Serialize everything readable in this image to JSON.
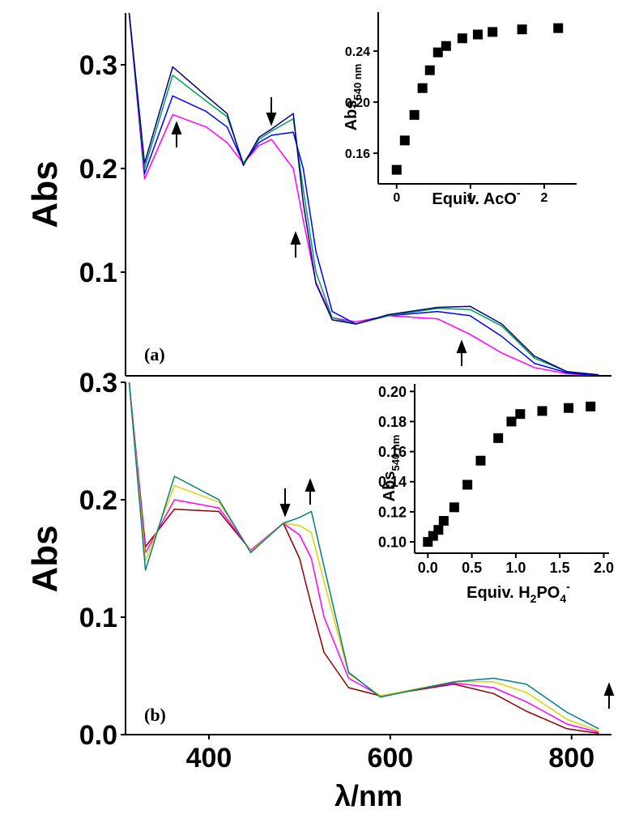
{
  "chart_data": [
    {
      "type": "line",
      "ylabel": "Abs",
      "annotation": "(a)",
      "xlim": [
        308,
        844
      ],
      "ylim": [
        0,
        0.35
      ],
      "yticks": [
        0.1,
        0.2,
        0.3
      ],
      "x": [
        312,
        329,
        360,
        397,
        420,
        438,
        455,
        469,
        493,
        504,
        518,
        536,
        562,
        598,
        652,
        688,
        723,
        759,
        795,
        830
      ],
      "series": [
        {
          "color": "#ff00ff",
          "values": [
            0.35,
            0.19,
            0.252,
            0.24,
            0.225,
            0.205,
            0.222,
            0.228,
            0.2,
            0.15,
            0.09,
            0.056,
            0.052,
            0.058,
            0.055,
            0.04,
            0.022,
            0.008,
            0.002,
            0
          ]
        },
        {
          "color": "#0000ff",
          "values": [
            0.35,
            0.195,
            0.27,
            0.255,
            0.24,
            0.205,
            0.225,
            0.232,
            0.235,
            0.2,
            0.12,
            0.062,
            0.05,
            0.058,
            0.062,
            0.058,
            0.038,
            0.012,
            0.003,
            0
          ]
        },
        {
          "color": "#00a050",
          "values": [
            0.35,
            0.2,
            0.29,
            0.265,
            0.25,
            0.205,
            0.228,
            0.236,
            0.248,
            0.18,
            0.1,
            0.056,
            0.05,
            0.058,
            0.065,
            0.064,
            0.048,
            0.017,
            0.004,
            0.001
          ]
        },
        {
          "color": "#000080",
          "values": [
            0.35,
            0.205,
            0.298,
            0.27,
            0.253,
            0.203,
            0.23,
            0.238,
            0.253,
            0.167,
            0.089,
            0.054,
            0.05,
            0.059,
            0.066,
            0.067,
            0.05,
            0.019,
            0.004,
            0.001
          ]
        }
      ]
    },
    {
      "type": "scatter",
      "ylabel": "Abs",
      "ylabel_sub": "540 nm",
      "xlabel": "Equiv. AcO",
      "xlabel_sup": "-",
      "xlim": [
        -0.25,
        2.44
      ],
      "ylim": [
        0.136,
        0.2705
      ],
      "xticks": [
        0,
        1,
        2
      ],
      "yticks": [
        0.16,
        {
          "value": 0.2,
          "label": "0.20"
        },
        0.24
      ],
      "x": [
        0,
        0.11,
        0.24,
        0.35,
        0.45,
        0.56,
        0.67,
        0.89,
        1.1,
        1.3,
        1.7,
        2.19
      ],
      "values": [
        0.147,
        0.17,
        0.19,
        0.211,
        0.225,
        0.239,
        0.244,
        0.25,
        0.253,
        0.255,
        0.257,
        0.258
      ]
    },
    {
      "type": "line",
      "ylabel": "Abs",
      "xlabel": "λ/nm",
      "annotation": "(b)",
      "xlim": [
        308,
        844
      ],
      "ylim": [
        0,
        0.3
      ],
      "xticks": [
        400,
        600,
        800
      ],
      "yticks": [
        {
          "value": 0,
          "label": "0.0"
        },
        0.1,
        0.2,
        0.3
      ],
      "x": [
        312,
        330,
        362,
        411,
        446,
        482,
        500,
        513,
        527,
        554,
        589,
        670,
        714,
        750,
        795,
        830
      ],
      "series": [
        {
          "color": "#8b0000",
          "values": [
            0.3,
            0.16,
            0.192,
            0.19,
            0.157,
            0.18,
            0.15,
            0.11,
            0.07,
            0.04,
            0.033,
            0.043,
            0.035,
            0.02,
            0.005,
            0.001
          ]
        },
        {
          "color": "#ff00ff",
          "values": [
            0.3,
            0.155,
            0.2,
            0.193,
            0.157,
            0.18,
            0.17,
            0.15,
            0.1,
            0.048,
            0.033,
            0.044,
            0.04,
            0.028,
            0.009,
            0.002
          ]
        },
        {
          "color": "#e0d000",
          "values": [
            0.3,
            0.148,
            0.212,
            0.198,
            0.156,
            0.18,
            0.178,
            0.172,
            0.13,
            0.052,
            0.033,
            0.045,
            0.045,
            0.036,
            0.013,
            0.003
          ]
        },
        {
          "color": "#008080",
          "values": [
            0.3,
            0.14,
            0.22,
            0.2,
            0.155,
            0.18,
            0.185,
            0.19,
            0.143,
            0.053,
            0.032,
            0.045,
            0.048,
            0.043,
            0.019,
            0.005
          ]
        }
      ]
    },
    {
      "type": "scatter",
      "ylabel": "Abs",
      "ylabel_sub": "540 nm",
      "xlabel": [
        "Equiv. H",
        "2",
        "PO",
        "4",
        "-"
      ],
      "xlim": [
        -0.15,
        2.06
      ],
      "ylim": [
        0.0925,
        0.205
      ],
      "xticks": [
        {
          "value": 0,
          "label": "0.0"
        },
        0.5,
        {
          "value": 1,
          "label": "1.0"
        },
        1.5,
        {
          "value": 2,
          "label": "2.0"
        }
      ],
      "yticks": [
        {
          "value": 0.1,
          "label": "0.10"
        },
        0.12,
        0.14,
        0.16,
        0.18,
        {
          "value": 0.2,
          "label": "0.20"
        }
      ],
      "x": [
        0,
        0.06,
        0.12,
        0.18,
        0.3,
        0.45,
        0.6,
        0.8,
        0.95,
        1.05,
        1.3,
        1.6,
        1.85
      ],
      "values": [
        0.1,
        0.104,
        0.108,
        0.114,
        0.123,
        0.138,
        0.154,
        0.169,
        0.18,
        0.185,
        0.187,
        0.189,
        0.19
      ]
    }
  ]
}
